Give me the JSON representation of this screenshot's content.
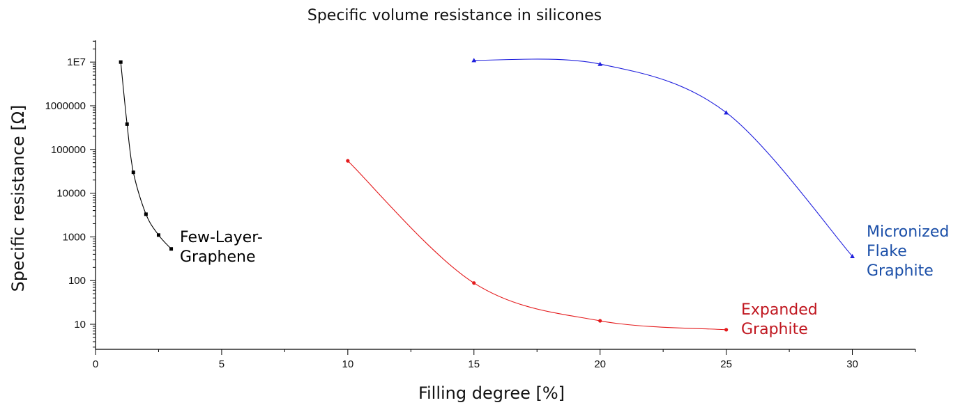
{
  "chart_data": {
    "type": "scatter",
    "title": "Specific volume resistance in silicones",
    "xlabel": "Filling degree [%]",
    "ylabel": "Specific  resistance [Ω]",
    "xlim": [
      0,
      32.5
    ],
    "ylim": [
      3,
      50000000
    ],
    "yscale": "log",
    "grid": false,
    "legend": "none",
    "x_ticks": [
      0,
      5,
      10,
      15,
      20,
      25,
      30
    ],
    "x_tick_labels": [
      "0",
      "5",
      "10",
      "15",
      "20",
      "25",
      "30"
    ],
    "y_ticks": [
      10,
      100,
      1000,
      10000,
      100000,
      1000000,
      10000000
    ],
    "y_tick_labels": [
      "10",
      "100",
      "1000",
      "10000",
      "100000",
      "1000000",
      "1E7"
    ],
    "series": [
      {
        "label": "Few-Layer-\nGraphene",
        "label_lines": [
          "Few-Layer-",
          "Graphene"
        ],
        "color": "#000000",
        "marker": "square",
        "x": [
          1.0,
          1.25,
          1.5,
          2.0,
          2.5,
          3.0
        ],
        "y": [
          10000000,
          380000,
          30000,
          3300,
          1100,
          530
        ]
      },
      {
        "label": "Expanded\nGraphite",
        "label_lines": [
          "Expanded",
          "Graphite"
        ],
        "color": "#e41a1c",
        "label_color": "#c0161f",
        "marker": "circle",
        "x": [
          10,
          15,
          20,
          25
        ],
        "y": [
          55000,
          88,
          12,
          7.5
        ]
      },
      {
        "label": "Micronized\nFlake\nGraphite",
        "label_lines": [
          "Micronized",
          "Flake",
          "Graphite"
        ],
        "color": "#1f1fdd",
        "label_color": "#1b4fa8",
        "marker": "triangle",
        "x": [
          15,
          20,
          25,
          30
        ],
        "y": [
          11000000,
          9000000,
          700000,
          360
        ]
      }
    ]
  }
}
